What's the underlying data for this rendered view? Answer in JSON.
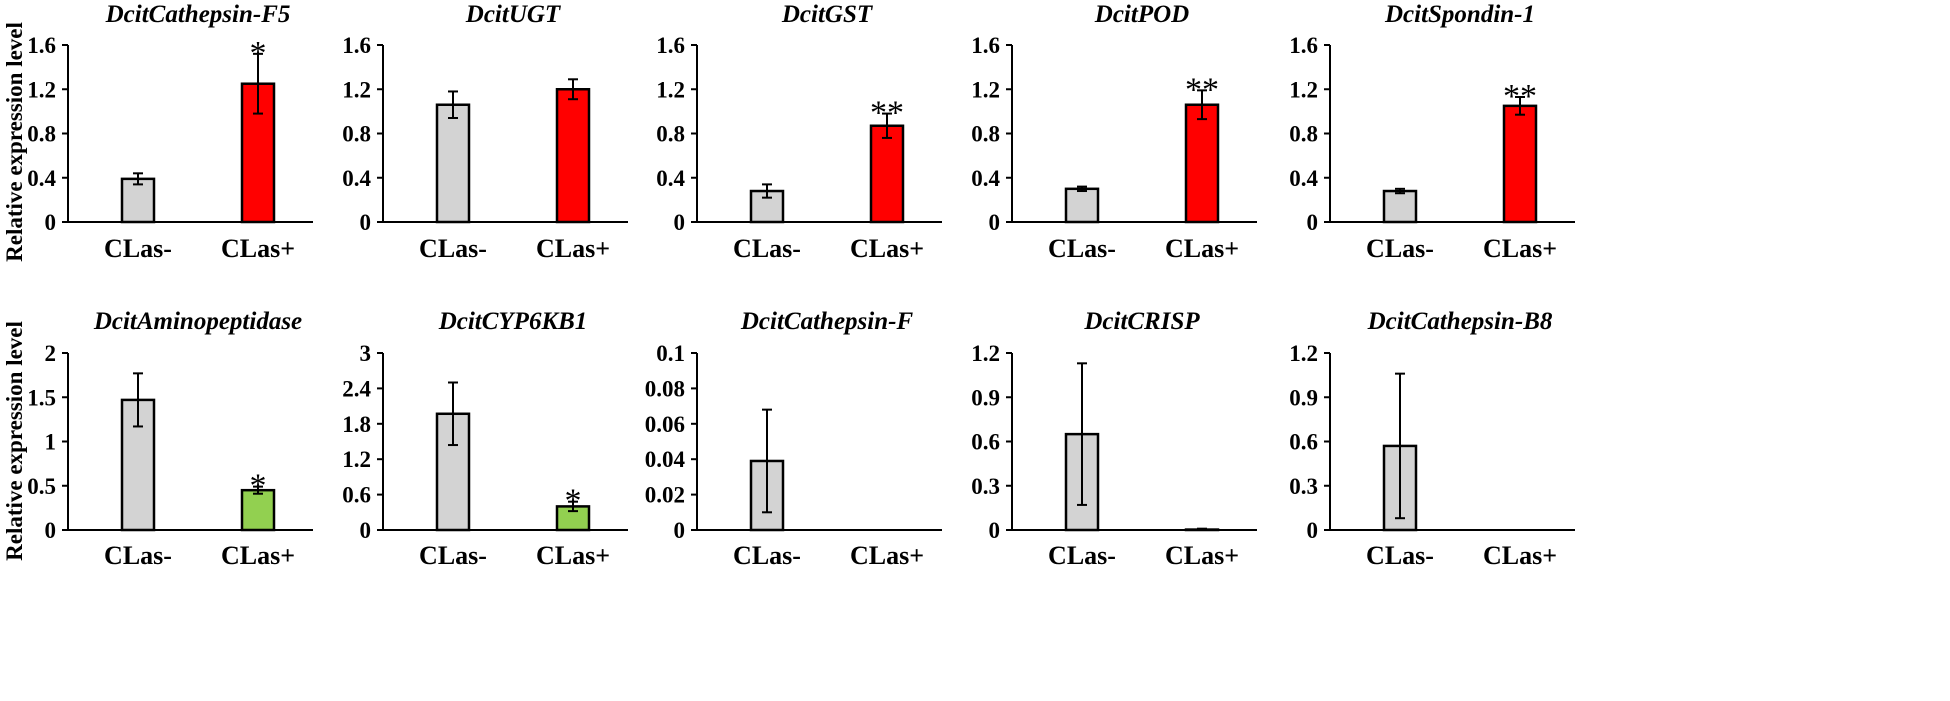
{
  "figure": {
    "ylabel": "Relative expression level",
    "colors": {
      "control": "#d3d3d3",
      "up": "#ff0000",
      "down": "#92d050",
      "stroke": "#000000"
    }
  },
  "chart_data": [
    {
      "type": "bar",
      "title": "DcitCathepsin-F5",
      "categories": [
        "CLas-",
        "CLas+"
      ],
      "values": [
        0.39,
        1.25
      ],
      "errors": [
        0.05,
        0.27
      ],
      "significance": [
        "",
        "*"
      ],
      "colors": [
        "#d3d3d3",
        "#ff0000"
      ],
      "ylim": [
        0,
        1.6
      ],
      "yticks": [
        "0",
        "0.4",
        "0.8",
        "1.2",
        "1.6"
      ],
      "ylabel": "Relative expression level"
    },
    {
      "type": "bar",
      "title": "DcitUGT",
      "categories": [
        "CLas-",
        "CLas+"
      ],
      "values": [
        1.06,
        1.2
      ],
      "errors": [
        0.12,
        0.09
      ],
      "significance": [
        "",
        ""
      ],
      "colors": [
        "#d3d3d3",
        "#ff0000"
      ],
      "ylim": [
        0,
        1.6
      ],
      "yticks": [
        "0",
        "0.4",
        "0.8",
        "1.2",
        "1.6"
      ],
      "ylabel": ""
    },
    {
      "type": "bar",
      "title": "DcitGST",
      "categories": [
        "CLas-",
        "CLas+"
      ],
      "values": [
        0.28,
        0.87
      ],
      "errors": [
        0.06,
        0.11
      ],
      "significance": [
        "",
        "**"
      ],
      "colors": [
        "#d3d3d3",
        "#ff0000"
      ],
      "ylim": [
        0,
        1.6
      ],
      "yticks": [
        "0",
        "0.4",
        "0.8",
        "1.2",
        "1.6"
      ],
      "ylabel": ""
    },
    {
      "type": "bar",
      "title": "DcitPOD",
      "categories": [
        "CLas-",
        "CLas+"
      ],
      "values": [
        0.3,
        1.06
      ],
      "errors": [
        0.02,
        0.13
      ],
      "significance": [
        "",
        "**"
      ],
      "colors": [
        "#d3d3d3",
        "#ff0000"
      ],
      "ylim": [
        0,
        1.6
      ],
      "yticks": [
        "0",
        "0.4",
        "0.8",
        "1.2",
        "1.6"
      ],
      "ylabel": ""
    },
    {
      "type": "bar",
      "title": "DcitSpondin-1",
      "categories": [
        "CLas-",
        "CLas+"
      ],
      "values": [
        0.28,
        1.05
      ],
      "errors": [
        0.02,
        0.08
      ],
      "significance": [
        "",
        "**"
      ],
      "colors": [
        "#d3d3d3",
        "#ff0000"
      ],
      "ylim": [
        0,
        1.6
      ],
      "yticks": [
        "0",
        "0.4",
        "0.8",
        "1.2",
        "1.6"
      ],
      "ylabel": ""
    },
    {
      "type": "bar",
      "title": "DcitAminopeptidase",
      "categories": [
        "CLas-",
        "CLas+"
      ],
      "values": [
        1.47,
        0.45
      ],
      "errors": [
        0.3,
        0.04
      ],
      "significance": [
        "",
        "*"
      ],
      "colors": [
        "#d3d3d3",
        "#92d050"
      ],
      "ylim": [
        0,
        2
      ],
      "yticks": [
        "0",
        "0.5",
        "1",
        "1.5",
        "2"
      ],
      "ylabel": "Relative expression level"
    },
    {
      "type": "bar",
      "title": "DcitCYP6KB1",
      "categories": [
        "CLas-",
        "CLas+"
      ],
      "values": [
        1.97,
        0.4
      ],
      "errors": [
        0.53,
        0.08
      ],
      "significance": [
        "",
        "*"
      ],
      "colors": [
        "#d3d3d3",
        "#92d050"
      ],
      "ylim": [
        0,
        3
      ],
      "yticks": [
        "0",
        "0.6",
        "1.2",
        "1.8",
        "2.4",
        "3"
      ],
      "ylabel": ""
    },
    {
      "type": "bar",
      "title": "DcitCathepsin-F",
      "categories": [
        "CLas-",
        "CLas+"
      ],
      "values": [
        0.039,
        0.0
      ],
      "errors": [
        0.029,
        0.0
      ],
      "significance": [
        "",
        ""
      ],
      "colors": [
        "#d3d3d3",
        "#d3d3d3"
      ],
      "ylim": [
        0,
        0.1
      ],
      "yticks": [
        "0",
        "0.02",
        "0.04",
        "0.06",
        "0.08",
        "0.1"
      ],
      "ylabel": ""
    },
    {
      "type": "bar",
      "title": "DcitCRISP",
      "categories": [
        "CLas-",
        "CLas+"
      ],
      "values": [
        0.65,
        0.003
      ],
      "errors": [
        0.48,
        0.006
      ],
      "significance": [
        "",
        ""
      ],
      "colors": [
        "#d3d3d3",
        "#d3d3d3"
      ],
      "ylim": [
        0,
        1.2
      ],
      "yticks": [
        "0",
        "0.3",
        "0.6",
        "0.9",
        "1.2"
      ],
      "ylabel": ""
    },
    {
      "type": "bar",
      "title": "DcitCathepsin-B8",
      "categories": [
        "CLas-",
        "CLas+"
      ],
      "values": [
        0.57,
        0.0
      ],
      "errors": [
        0.49,
        0.0
      ],
      "significance": [
        "",
        ""
      ],
      "colors": [
        "#d3d3d3",
        "#d3d3d3"
      ],
      "ylim": [
        0,
        1.2
      ],
      "yticks": [
        "0",
        "0.3",
        "0.6",
        "0.9",
        "1.2"
      ],
      "ylabel": ""
    }
  ]
}
